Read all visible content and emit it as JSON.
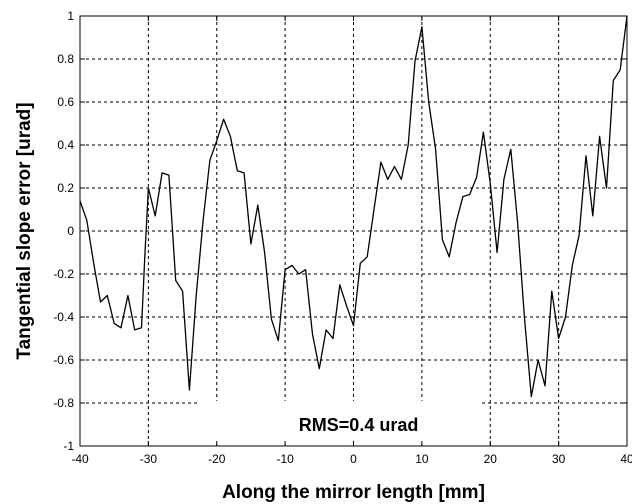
{
  "chart_data": {
    "type": "line",
    "xlabel": "Along the mirror length [mm]",
    "ylabel": "Tangential slope error [urad]",
    "annotation": "RMS=0.4 urad",
    "xlim": [
      -40,
      40
    ],
    "ylim": [
      -1,
      1
    ],
    "xticks": [
      -40,
      -30,
      -20,
      -10,
      0,
      10,
      20,
      30,
      40
    ],
    "xtick_labels": [
      "-40",
      "-30",
      "-20",
      "-10",
      "0",
      "10",
      "20",
      "30",
      "40"
    ],
    "yticks": [
      -1,
      -0.8,
      -0.6,
      -0.4,
      -0.2,
      0,
      0.2,
      0.4,
      0.6,
      0.8,
      1
    ],
    "ytick_labels": [
      "-1",
      "-0.8",
      "-0.6",
      "-0.4",
      "-0.2",
      "0",
      "0.2",
      "0.4",
      "0.6",
      "0.8",
      "1"
    ],
    "grid": true,
    "line_color": "#000000",
    "x": [
      -40,
      -39,
      -38,
      -37,
      -36,
      -35,
      -34,
      -33,
      -32,
      -31,
      -30.5,
      -30,
      -29,
      -28,
      -27,
      -26,
      -25,
      -24,
      -23,
      -22,
      -21,
      -20,
      -19,
      -18,
      -17,
      -16,
      -15,
      -14,
      -13,
      -12,
      -11,
      -10,
      -9,
      -8,
      -7,
      -6,
      -5,
      -4,
      -3,
      -2,
      -1,
      0,
      1,
      2,
      3,
      4,
      5,
      6,
      7,
      8,
      9,
      10,
      11,
      12,
      13,
      14,
      15,
      16,
      17,
      18,
      19,
      20,
      21,
      22,
      23,
      24,
      25,
      26,
      27,
      28,
      29,
      30,
      31,
      32,
      33,
      34,
      35,
      36,
      37,
      38,
      39,
      40
    ],
    "y": [
      0.14,
      0.05,
      -0.15,
      -0.33,
      -0.3,
      -0.43,
      -0.45,
      -0.3,
      -0.46,
      -0.45,
      -0.1,
      0.2,
      0.07,
      0.27,
      0.26,
      -0.23,
      -0.28,
      -0.74,
      -0.3,
      0.05,
      0.33,
      0.42,
      0.52,
      0.44,
      0.28,
      0.27,
      -0.06,
      0.12,
      -0.1,
      -0.41,
      -0.51,
      -0.18,
      -0.16,
      -0.2,
      -0.18,
      -0.48,
      -0.64,
      -0.46,
      -0.5,
      -0.25,
      -0.35,
      -0.44,
      -0.15,
      -0.12,
      0.1,
      0.32,
      0.24,
      0.3,
      0.24,
      0.4,
      0.79,
      0.95,
      0.6,
      0.38,
      -0.04,
      -0.12,
      0.04,
      0.16,
      0.17,
      0.25,
      0.46,
      0.22,
      -0.1,
      0.24,
      0.38,
      0.04,
      -0.4,
      -0.77,
      -0.6,
      -0.72,
      -0.28,
      -0.5,
      -0.4,
      -0.16,
      -0.02,
      0.35,
      0.07,
      0.44,
      0.2,
      0.7,
      0.75,
      1.0
    ]
  }
}
